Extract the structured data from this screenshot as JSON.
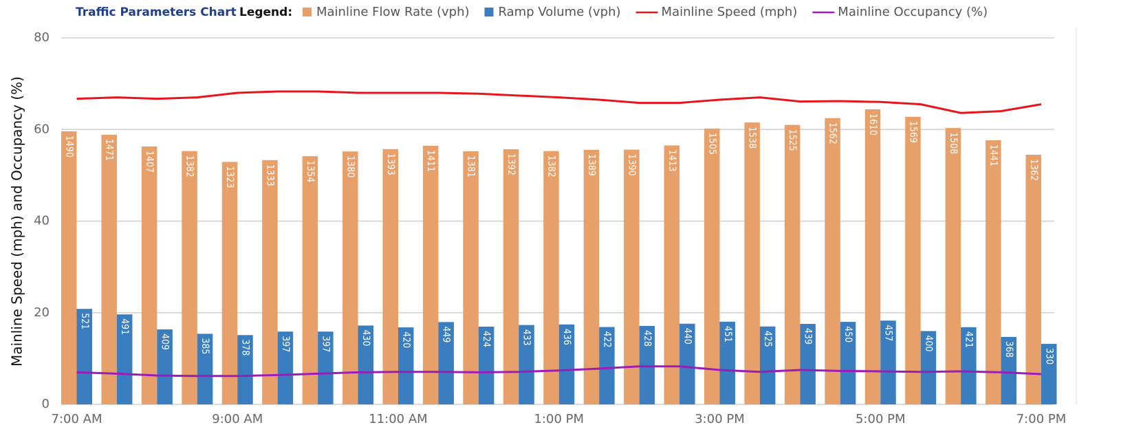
{
  "chart_data": {
    "type": "bar",
    "legend_title": "Traffic Parameters Chart",
    "legend_word": "Legend:",
    "y_label": "Mainline Speed (mph) and Occupancy (%)",
    "categories": [
      "7:00 AM",
      null,
      null,
      null,
      "9:00 AM",
      null,
      null,
      null,
      "11:00 AM",
      null,
      null,
      null,
      "1:00 PM",
      null,
      null,
      null,
      "3:00 PM",
      null,
      null,
      null,
      "5:00 PM",
      null,
      null,
      null,
      "7:00 PM"
    ],
    "ylim": [
      0,
      80
    ],
    "yticks": [
      0,
      20,
      40,
      60,
      80
    ],
    "y2lim": [
      0,
      2000
    ],
    "grid": true,
    "series": [
      {
        "name": "Mainline Flow Rate (vph)",
        "type": "bar",
        "axis": "y2",
        "color": "#e8a06a",
        "values": [
          1490,
          1471,
          1407,
          1382,
          1323,
          1333,
          1354,
          1380,
          1393,
          1411,
          1381,
          1392,
          1382,
          1389,
          1390,
          1413,
          1505,
          1538,
          1525,
          1562,
          1610,
          1569,
          1508,
          1441,
          1362
        ]
      },
      {
        "name": "Ramp Volume (vph)",
        "type": "bar",
        "axis": "y2",
        "color": "#3a7ebf",
        "values": [
          521,
          491,
          409,
          385,
          378,
          397,
          397,
          430,
          420,
          449,
          424,
          433,
          436,
          422,
          428,
          440,
          451,
          425,
          439,
          450,
          457,
          400,
          421,
          368,
          330
        ]
      },
      {
        "name": "Mainline Speed (mph)",
        "type": "line",
        "color": "#e8141c",
        "values": [
          66.7,
          67,
          66.7,
          67,
          68,
          68.3,
          68.3,
          68,
          68,
          68,
          67.8,
          67.4,
          67,
          66.5,
          65.8,
          65.8,
          66.5,
          67,
          66.1,
          66.2,
          66,
          65.5,
          63.6,
          64,
          65.5
        ]
      },
      {
        "name": "Mainline Occupancy (%)",
        "type": "line",
        "color": "#9b1cb8",
        "values": [
          7,
          6.7,
          6.3,
          6.2,
          6.2,
          6.4,
          6.7,
          7,
          7.1,
          7.1,
          7,
          7.1,
          7.4,
          7.8,
          8.3,
          8.3,
          7.5,
          7.1,
          7.5,
          7.3,
          7.2,
          7.1,
          7.2,
          7,
          6.6
        ]
      }
    ]
  }
}
